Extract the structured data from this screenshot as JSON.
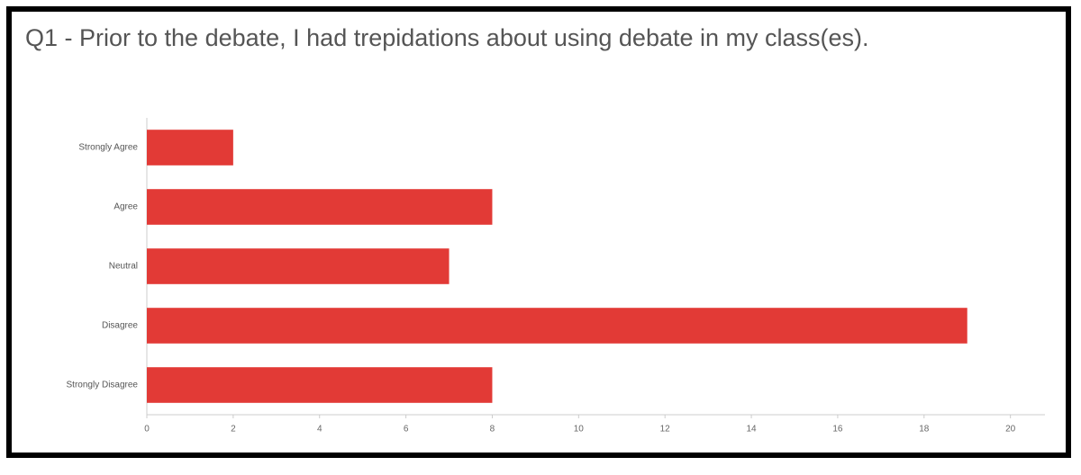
{
  "chart_data": {
    "type": "bar",
    "orientation": "horizontal",
    "title": "Q1 - Prior to the debate, I had trepidations about using debate in my class(es).",
    "categories": [
      "Strongly Agree",
      "Agree",
      "Neutral",
      "Disagree",
      "Strongly Disagree"
    ],
    "values": [
      2,
      8,
      7,
      19,
      8
    ],
    "color": "#e23a36",
    "xlim": [
      0,
      20.8
    ],
    "xticks": [
      0,
      2,
      4,
      6,
      8,
      10,
      12,
      14,
      16,
      18,
      20
    ],
    "grid": false
  }
}
